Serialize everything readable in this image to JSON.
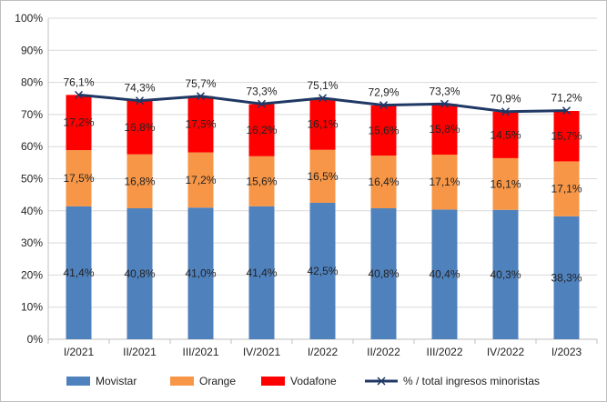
{
  "chart_data": {
    "type": "bar",
    "stacked": true,
    "overlay": "line",
    "categories": [
      "I/2021",
      "II/2021",
      "III/2021",
      "IV/2021",
      "I/2022",
      "II/2022",
      "III/2022",
      "IV/2022",
      "I/2023"
    ],
    "series": [
      {
        "name": "Movistar",
        "color": "#4f81bd",
        "values": [
          41.4,
          40.8,
          41.0,
          41.4,
          42.5,
          40.8,
          40.4,
          40.3,
          38.3
        ],
        "labels": [
          "41,4%",
          "40,8%",
          "41,0%",
          "41,4%",
          "42,5%",
          "40,8%",
          "40,4%",
          "40,3%",
          "38,3%"
        ]
      },
      {
        "name": "Orange",
        "color": "#f79646",
        "values": [
          17.5,
          16.8,
          17.2,
          15.6,
          16.5,
          16.4,
          17.1,
          16.1,
          17.1
        ],
        "labels": [
          "17,5%",
          "16,8%",
          "17,2%",
          "15,6%",
          "16,5%",
          "16,4%",
          "17,1%",
          "16,1%",
          "17,1%"
        ]
      },
      {
        "name": "Vodafone",
        "color": "#ff0000",
        "values": [
          17.2,
          16.8,
          17.5,
          16.2,
          16.1,
          15.6,
          15.8,
          14.5,
          15.7
        ],
        "labels": [
          "17,2%",
          "16,8%",
          "17,5%",
          "16,2%",
          "16,1%",
          "15,6%",
          "15,8%",
          "14,5%",
          "15,7%"
        ]
      }
    ],
    "line_series": {
      "name": "% / total ingresos minoristas",
      "color": "#1f3864",
      "values": [
        76.1,
        74.3,
        75.7,
        73.3,
        75.1,
        72.9,
        73.3,
        70.9,
        71.2
      ],
      "labels": [
        "76,1%",
        "74,3%",
        "75,7%",
        "73,3%",
        "75,1%",
        "72,9%",
        "73,3%",
        "70,9%",
        "71,2%"
      ]
    },
    "y_ticks": [
      "0%",
      "10%",
      "20%",
      "30%",
      "40%",
      "50%",
      "60%",
      "70%",
      "80%",
      "90%",
      "100%"
    ],
    "ylim": [
      0,
      100
    ],
    "grid": true,
    "legend_position": "bottom",
    "title": "",
    "xlabel": "",
    "ylabel": ""
  }
}
